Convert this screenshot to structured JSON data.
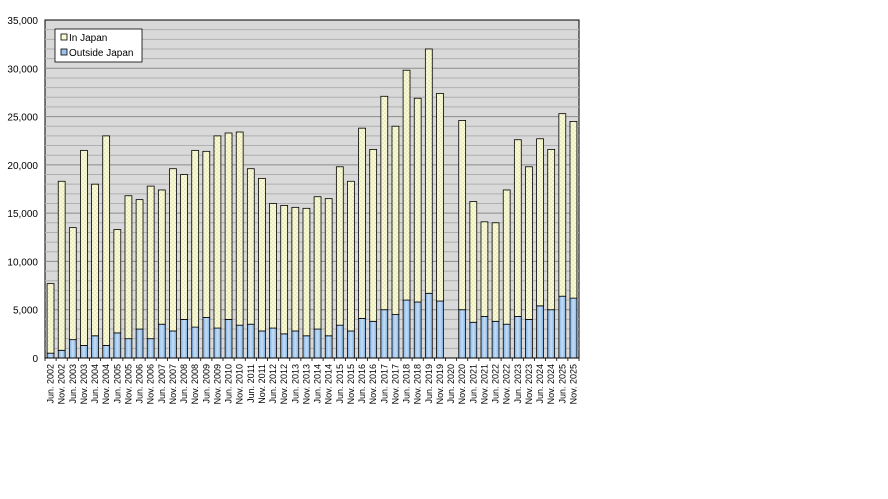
{
  "chart_data": {
    "type": "bar",
    "stacked": true,
    "title": "",
    "xlabel": "",
    "ylabel": "",
    "ylim": [
      0,
      35000
    ],
    "yticks": [
      0,
      5000,
      10000,
      15000,
      20000,
      25000,
      30000,
      35000
    ],
    "ytick_labels": [
      "0",
      "5,000",
      "10,000",
      "15,000",
      "20,000",
      "25,000",
      "30,000",
      "35,000"
    ],
    "grid": true,
    "legend_position": "upper left",
    "categories": [
      "Jun. 2002",
      "Nov. 2002",
      "Jun. 2003",
      "Nov. 2003",
      "Jun. 2004",
      "Nov. 2004",
      "Jun. 2005",
      "Nov. 2005",
      "Jun. 2006",
      "Nov. 2006",
      "Jun. 2007",
      "Nov. 2007",
      "Jun. 2008",
      "Nov. 2008",
      "Jun. 2009",
      "Nov. 2009",
      "Jun. 2010",
      "Nov. 2010",
      "Jun. 2011",
      "Nov. 2011",
      "Jun. 2012",
      "Nov. 2012",
      "Jun. 2013",
      "Nov. 2013",
      "Jun. 2014",
      "Nov. 2014",
      "Jun. 2015",
      "Nov. 2015",
      "Jun. 2016",
      "Nov. 2016",
      "Jun. 2017",
      "Nov. 2017",
      "Jun. 2018",
      "Nov. 2018",
      "Jun. 2019",
      "Nov. 2019",
      "Jun. 2020",
      "Nov. 2020",
      "Jun. 2021",
      "Nov. 2021",
      "Jun. 2022",
      "Nov. 2022",
      "Jun. 2023",
      "Nov. 2023",
      "Jun. 2024",
      "Nov. 2024",
      "Jun. 2025",
      "Nov. 2025"
    ],
    "series": [
      {
        "name": "Outside Japan",
        "color": "#9cc3ec",
        "values": [
          500,
          800,
          1900,
          1300,
          2300,
          1300,
          2600,
          2000,
          3000,
          2000,
          3500,
          2800,
          4000,
          3200,
          4200,
          3100,
          4000,
          3400,
          3500,
          2800,
          3100,
          2500,
          2800,
          2300,
          3000,
          2300,
          3400,
          2800,
          4100,
          3800,
          5000,
          4500,
          6000,
          5800,
          6700,
          5900,
          null,
          5000,
          3700,
          4300,
          3800,
          3500,
          4300,
          4000,
          5400,
          5000,
          6400,
          6200
        ]
      },
      {
        "name": "In Japan",
        "color": "#fafad2",
        "values": [
          7200,
          17500,
          11600,
          20200,
          15700,
          21700,
          10700,
          14800,
          13400,
          15800,
          13900,
          16800,
          15000,
          18300,
          17200,
          19900,
          19300,
          20000,
          16100,
          15800,
          12900,
          13300,
          12800,
          13200,
          13700,
          14200,
          16400,
          15500,
          19700,
          17800,
          22100,
          19500,
          23800,
          21100,
          25300,
          21500,
          null,
          19600,
          12500,
          9800,
          10200,
          13900,
          18300,
          15800,
          17300,
          16600,
          18900,
          18300
        ]
      }
    ]
  },
  "legend": {
    "items": [
      {
        "label": "In Japan",
        "color": "#fafad2"
      },
      {
        "label": "Outside Japan",
        "color": "#9cc3ec"
      }
    ]
  },
  "colors": {
    "plot_bg": "#d9d9d9",
    "grid": "#a6a6a6",
    "bar_outline": "#000000"
  }
}
